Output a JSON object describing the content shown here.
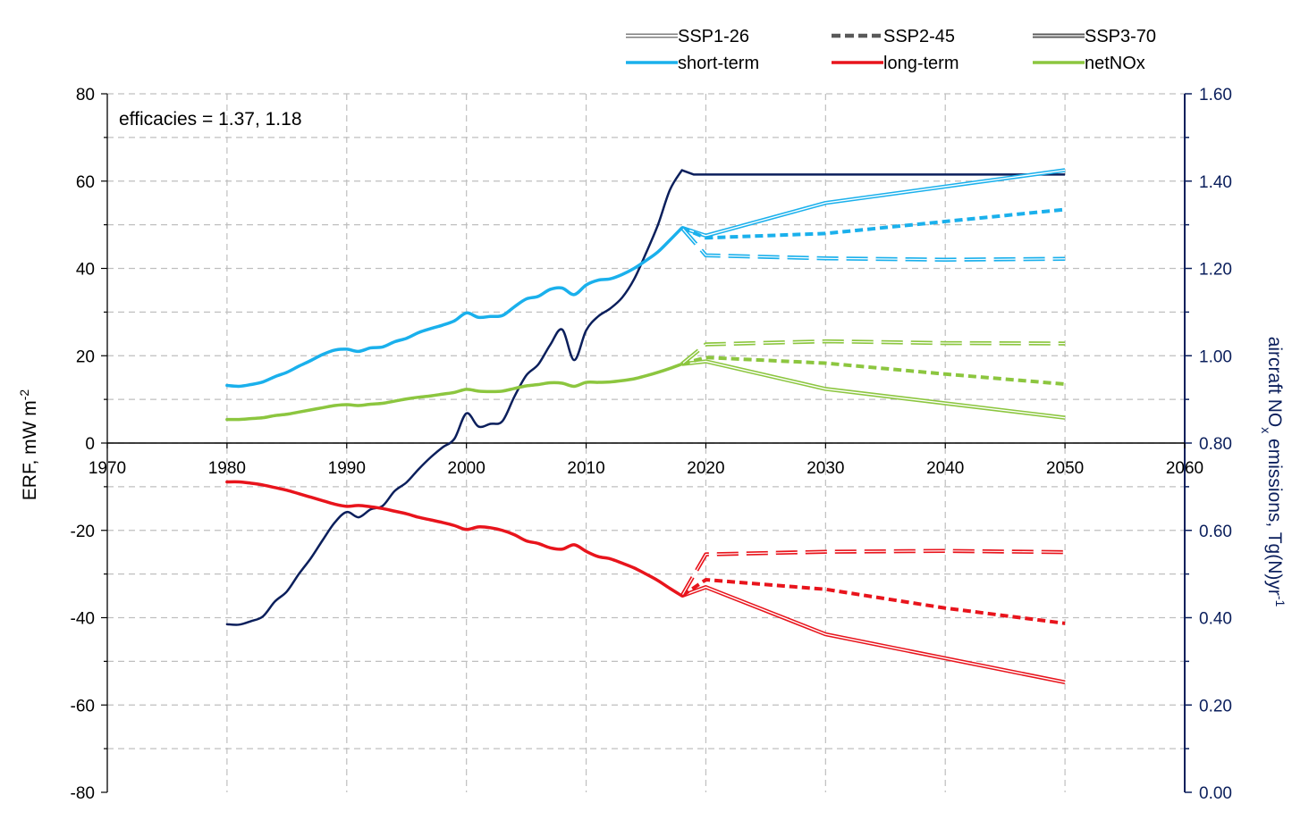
{
  "chart_data": {
    "type": "line",
    "annotation": "efficacies = 1.37, 1.18",
    "xlim": [
      1970,
      2060
    ],
    "x_ticks": [
      "1970",
      "1980",
      "1990",
      "2000",
      "2010",
      "2020",
      "2030",
      "2040",
      "2050",
      "2060"
    ],
    "ylabel": "ERF, mW m",
    "ylabel_sup": "-2",
    "ylim": [
      -80,
      80
    ],
    "y_ticks": [
      "-80",
      "-60",
      "-40",
      "-20",
      "0",
      "20",
      "40",
      "60",
      "80"
    ],
    "y2label_pre": "aircraft NO",
    "y2label_sub": "x",
    "y2label_mid": " emissions, Tg(N)yr",
    "y2label_sup": "-1",
    "y2lim": [
      0,
      1.6
    ],
    "y2_ticks": [
      "0.00",
      "0.20",
      "0.40",
      "0.60",
      "0.80",
      "1.00",
      "1.20",
      "1.40",
      "1.60"
    ],
    "grid": true,
    "legend": {
      "placement": "top-right",
      "scenarios": [
        {
          "name": "SSP1-26",
          "style": "double"
        },
        {
          "name": "SSP2-45",
          "style": "dashed"
        },
        {
          "name": "SSP3-70",
          "style": "double-dark"
        }
      ],
      "components": [
        {
          "name": "short-term",
          "color": "#1ab0ec"
        },
        {
          "name": "long-term",
          "color": "#e8141c"
        },
        {
          "name": "netNOx",
          "color": "#8cc63f"
        }
      ]
    },
    "colors": {
      "short_term": "#1ab0ec",
      "long_term": "#e8141c",
      "netNOx": "#8cc63f",
      "emissions": "#0b1f5c",
      "grid": "#bfbfbf"
    },
    "historical": {
      "years": [
        1980,
        1981,
        1982,
        1983,
        1984,
        1985,
        1986,
        1987,
        1988,
        1989,
        1990,
        1991,
        1992,
        1993,
        1994,
        1995,
        1996,
        1997,
        1998,
        1999,
        2000,
        2001,
        2002,
        2003,
        2004,
        2005,
        2006,
        2007,
        2008,
        2009,
        2010,
        2011,
        2012,
        2013,
        2014,
        2015,
        2016,
        2017,
        2018
      ],
      "short_term": [
        13.2,
        13.0,
        13.4,
        14.0,
        15.2,
        16.2,
        17.6,
        18.9,
        20.3,
        21.3,
        21.5,
        21.0,
        21.8,
        22.0,
        23.2,
        24.0,
        25.3,
        26.2,
        27.0,
        28.0,
        29.8,
        28.8,
        29.0,
        29.2,
        31.2,
        33.0,
        33.6,
        35.2,
        35.5,
        34.0,
        36.2,
        37.3,
        37.6,
        38.6,
        40.0,
        41.8,
        43.8,
        46.5,
        49.3
      ],
      "long_term": [
        -8.9,
        -8.9,
        -9.2,
        -9.6,
        -10.2,
        -10.8,
        -11.6,
        -12.4,
        -13.2,
        -14.0,
        -14.5,
        -14.3,
        -14.6,
        -15.0,
        -15.6,
        -16.2,
        -17.0,
        -17.6,
        -18.2,
        -18.9,
        -19.8,
        -19.2,
        -19.4,
        -20.0,
        -21.0,
        -22.4,
        -23.0,
        -24.0,
        -24.3,
        -23.3,
        -24.8,
        -26.0,
        -26.5,
        -27.5,
        -28.6,
        -30.0,
        -31.5,
        -33.3,
        -35.0
      ],
      "netNOx": [
        5.4,
        5.4,
        5.6,
        5.8,
        6.3,
        6.6,
        7.1,
        7.6,
        8.1,
        8.6,
        8.8,
        8.6,
        8.9,
        9.1,
        9.6,
        10.1,
        10.5,
        10.8,
        11.2,
        11.6,
        12.3,
        11.9,
        11.8,
        11.9,
        12.5,
        13.1,
        13.4,
        13.8,
        13.7,
        13.0,
        13.9,
        13.9,
        14.0,
        14.3,
        14.7,
        15.4,
        16.2,
        17.1,
        18.1
      ],
      "emissions": [
        0.385,
        0.384,
        0.392,
        0.403,
        0.437,
        0.46,
        0.5,
        0.536,
        0.578,
        0.618,
        0.642,
        0.63,
        0.648,
        0.656,
        0.69,
        0.71,
        0.74,
        0.767,
        0.79,
        0.81,
        0.868,
        0.838,
        0.844,
        0.85,
        0.906,
        0.955,
        0.98,
        1.025,
        1.06,
        0.99,
        1.058,
        1.09,
        1.108,
        1.133,
        1.175,
        1.235,
        1.3,
        1.38,
        1.425
      ]
    },
    "series": [
      {
        "component": "short_term",
        "scenario": "SSP1-26",
        "x": [
          2018,
          2020,
          2030,
          2050
        ],
        "values": [
          49.3,
          47.5,
          55.0,
          62.5
        ]
      },
      {
        "component": "short_term",
        "scenario": "SSP2-45",
        "x": [
          2018,
          2020,
          2030,
          2050
        ],
        "values": [
          49.3,
          47.0,
          48.0,
          53.5
        ]
      },
      {
        "component": "short_term",
        "scenario": "SSP3-70",
        "x": [
          2018,
          2020,
          2030,
          2040,
          2050
        ],
        "values": [
          49.3,
          43.0,
          42.3,
          42.0,
          42.2
        ]
      },
      {
        "component": "long_term",
        "scenario": "SSP1-26",
        "x": [
          2018,
          2020,
          2030,
          2050
        ],
        "values": [
          -35.0,
          -33.0,
          -43.8,
          -54.8
        ]
      },
      {
        "component": "long_term",
        "scenario": "SSP2-45",
        "x": [
          2018,
          2020,
          2030,
          2040,
          2050
        ],
        "values": [
          -35.0,
          -31.3,
          -33.5,
          -37.8,
          -41.3
        ]
      },
      {
        "component": "long_term",
        "scenario": "SSP3-70",
        "x": [
          2018,
          2020,
          2030,
          2040,
          2050
        ],
        "values": [
          -35.0,
          -25.5,
          -24.9,
          -24.7,
          -25.0
        ]
      },
      {
        "component": "netNOx",
        "scenario": "SSP1-26",
        "x": [
          2018,
          2020,
          2030,
          2050
        ],
        "values": [
          18.1,
          18.7,
          12.4,
          5.8
        ]
      },
      {
        "component": "netNOx",
        "scenario": "SSP2-45",
        "x": [
          2018,
          2020,
          2030,
          2040,
          2050
        ],
        "values": [
          18.1,
          19.6,
          18.3,
          15.8,
          13.5
        ]
      },
      {
        "component": "netNOx",
        "scenario": "SSP3-70",
        "x": [
          2018,
          2020,
          2030,
          2040,
          2050
        ],
        "values": [
          18.1,
          22.6,
          23.3,
          22.9,
          22.8
        ]
      },
      {
        "component": "emissions",
        "scenario": "all",
        "x": [
          2018,
          2019,
          2050
        ],
        "values": [
          1.425,
          1.415,
          1.415
        ]
      }
    ]
  }
}
